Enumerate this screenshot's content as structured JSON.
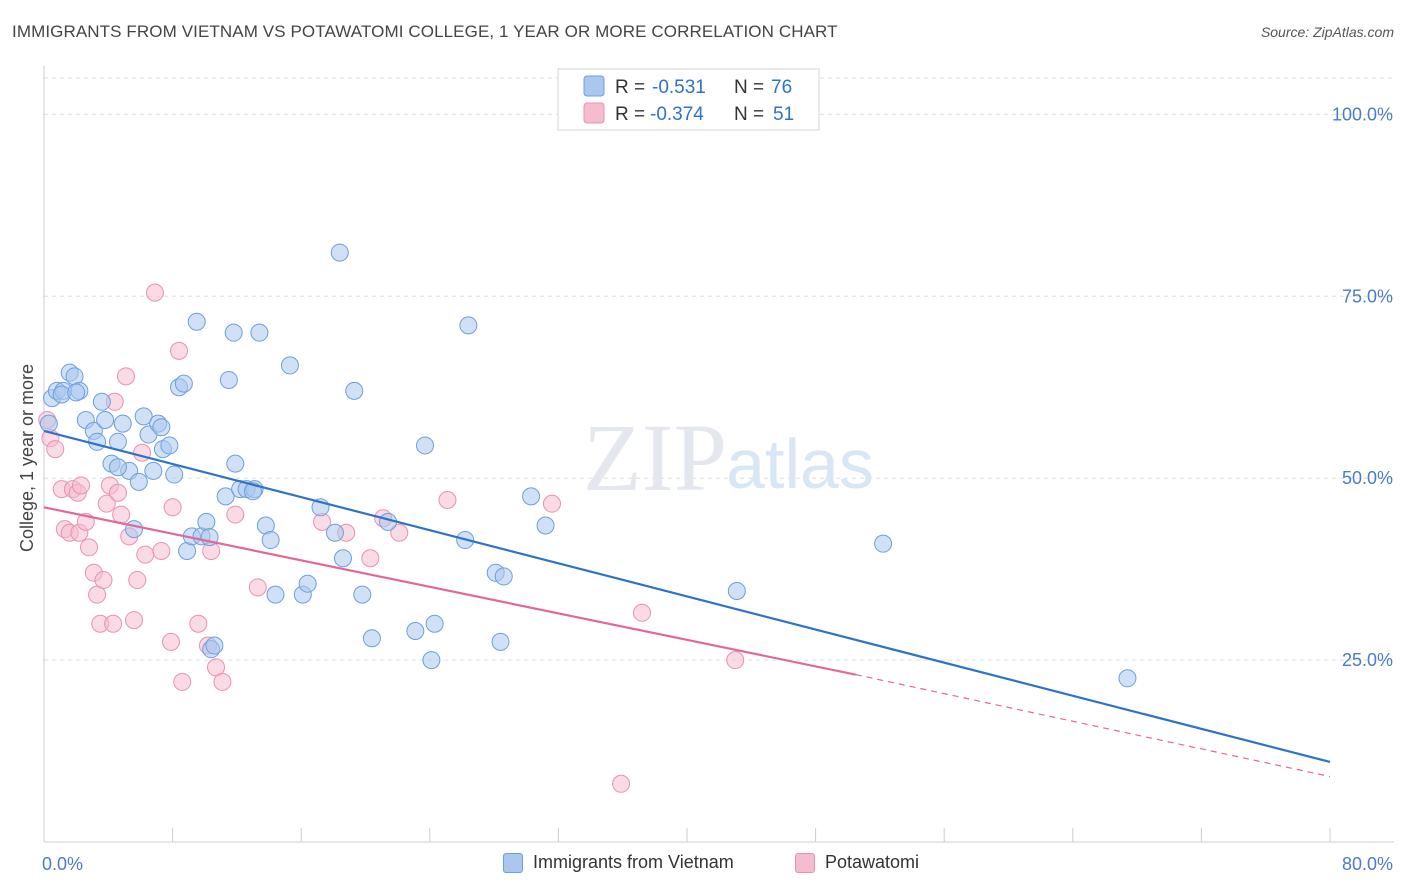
{
  "title": "IMMIGRANTS FROM VIETNAM VS POTAWATOMI COLLEGE, 1 YEAR OR MORE CORRELATION CHART",
  "source": "Source: ZipAtlas.com",
  "watermark": {
    "zip": "ZIP",
    "atlas": "atlas"
  },
  "colors": {
    "blue_fill": "#aac8ee",
    "blue_stroke": "#6d9fdc",
    "blue_line": "#2f72c9",
    "pink_fill": "#f5bcd0",
    "pink_stroke": "#e892b0",
    "pink_line": "#e0699a",
    "tick_label": "#4a7cc9",
    "grid": "#dddddd",
    "axis": "#cccccc"
  },
  "legend_top": [
    {
      "r_label": "R =",
      "r_value": "-0.531",
      "n_label": "N =",
      "n_value": "76"
    },
    {
      "r_label": "R =",
      "r_value": "-0.374",
      "n_label": "N =",
      "n_value": "51"
    }
  ],
  "legend_bottom": [
    {
      "label": "Immigrants from Vietnam"
    },
    {
      "label": "Potawatomi"
    }
  ],
  "chart_data": {
    "type": "scatter",
    "title": "IMMIGRANTS FROM VIETNAM VS POTAWATOMI COLLEGE, 1 YEAR OR MORE CORRELATION CHART",
    "xlabel": "",
    "ylabel": "College, 1 year or more",
    "xlim": [
      0,
      80
    ],
    "ylim": [
      0,
      105
    ],
    "x_tick_labels": [
      "0.0%",
      "80.0%"
    ],
    "y_ticks": [
      25,
      50,
      75,
      100
    ],
    "y_tick_labels": [
      "25.0%",
      "50.0%",
      "75.0%",
      "100.0%"
    ],
    "grid": true,
    "legend_placement": "top-center",
    "series": [
      {
        "name": "Immigrants from Vietnam",
        "color": "#aac8ee",
        "r": -0.531,
        "n": 76,
        "trend": {
          "x": [
            0,
            80
          ],
          "y": [
            56.5,
            11.0
          ]
        },
        "points": [
          [
            0.5,
            61
          ],
          [
            0.8,
            62
          ],
          [
            1.2,
            62
          ],
          [
            1.6,
            64.5
          ],
          [
            1.9,
            64
          ],
          [
            2.2,
            62
          ],
          [
            2.6,
            58
          ],
          [
            3.1,
            56.5
          ],
          [
            3.3,
            55
          ],
          [
            3.6,
            60.5
          ],
          [
            3.8,
            58
          ],
          [
            4.2,
            52
          ],
          [
            4.6,
            55
          ],
          [
            4.9,
            57.5
          ],
          [
            5.3,
            51
          ],
          [
            5.6,
            43
          ],
          [
            5.9,
            49.5
          ],
          [
            6.2,
            58.5
          ],
          [
            6.5,
            56
          ],
          [
            6.8,
            51
          ],
          [
            7.1,
            57.5
          ],
          [
            7.4,
            54
          ],
          [
            7.8,
            54.5
          ],
          [
            8.1,
            50.5
          ],
          [
            8.4,
            62.5
          ],
          [
            8.7,
            63
          ],
          [
            8.9,
            40
          ],
          [
            9.2,
            42
          ],
          [
            9.5,
            71.5
          ],
          [
            9.8,
            42
          ],
          [
            10.1,
            44
          ],
          [
            10.4,
            26.5
          ],
          [
            10.6,
            27
          ],
          [
            11.3,
            47.5
          ],
          [
            11.5,
            63.5
          ],
          [
            11.8,
            70
          ],
          [
            11.9,
            52
          ],
          [
            12.2,
            48.5
          ],
          [
            12.6,
            48.5
          ],
          [
            13.1,
            48.5
          ],
          [
            13.4,
            70
          ],
          [
            13.8,
            43.5
          ],
          [
            14.1,
            41.5
          ],
          [
            14.4,
            34
          ],
          [
            15.3,
            65.5
          ],
          [
            16.1,
            34
          ],
          [
            16.4,
            35.5
          ],
          [
            17.2,
            46
          ],
          [
            18.1,
            42.5
          ],
          [
            18.4,
            81
          ],
          [
            18.6,
            39
          ],
          [
            19.3,
            62
          ],
          [
            19.8,
            34
          ],
          [
            20.4,
            28
          ],
          [
            21.4,
            44
          ],
          [
            23.1,
            29
          ],
          [
            23.7,
            54.5
          ],
          [
            24.1,
            25
          ],
          [
            24.3,
            30
          ],
          [
            26.2,
            41.5
          ],
          [
            26.4,
            71
          ],
          [
            28.1,
            37
          ],
          [
            28.4,
            27.5
          ],
          [
            28.6,
            36.5
          ],
          [
            30.3,
            47.5
          ],
          [
            31.2,
            43.5
          ],
          [
            43.1,
            34.5
          ],
          [
            52.2,
            41
          ],
          [
            67.4,
            22.5
          ],
          [
            0.3,
            57.5
          ],
          [
            1.1,
            61.5
          ],
          [
            2.0,
            61.8
          ],
          [
            4.6,
            51.5
          ],
          [
            7.3,
            57
          ],
          [
            10.3,
            41.9
          ],
          [
            13.0,
            48.2
          ]
        ]
      },
      {
        "name": "Potawatomi",
        "color": "#f5bcd0",
        "r": -0.374,
        "n": 51,
        "trend_solid": {
          "x": [
            0,
            50.5
          ],
          "y": [
            46,
            23.0
          ]
        },
        "trend_dashed": {
          "x": [
            50.5,
            80
          ],
          "y": [
            23.0,
            9.0
          ]
        },
        "points": [
          [
            0.2,
            58
          ],
          [
            0.4,
            55.5
          ],
          [
            0.7,
            54
          ],
          [
            1.1,
            48.5
          ],
          [
            1.3,
            43
          ],
          [
            1.6,
            42.5
          ],
          [
            1.8,
            48.5
          ],
          [
            2.1,
            48
          ],
          [
            2.2,
            42.5
          ],
          [
            2.3,
            49
          ],
          [
            2.6,
            44
          ],
          [
            2.8,
            40.5
          ],
          [
            3.1,
            37
          ],
          [
            3.3,
            34
          ],
          [
            3.5,
            30
          ],
          [
            3.7,
            36
          ],
          [
            3.9,
            46.5
          ],
          [
            4.1,
            49
          ],
          [
            4.3,
            30
          ],
          [
            4.4,
            60.5
          ],
          [
            4.6,
            48
          ],
          [
            4.8,
            45
          ],
          [
            5.1,
            64
          ],
          [
            5.3,
            42
          ],
          [
            5.6,
            30.5
          ],
          [
            5.8,
            36
          ],
          [
            6.1,
            53.5
          ],
          [
            6.3,
            39.5
          ],
          [
            6.9,
            75.5
          ],
          [
            7.3,
            40
          ],
          [
            7.9,
            27.5
          ],
          [
            8.0,
            46
          ],
          [
            8.4,
            67.5
          ],
          [
            8.6,
            22
          ],
          [
            9.6,
            30
          ],
          [
            10.2,
            27
          ],
          [
            10.4,
            40
          ],
          [
            10.7,
            24
          ],
          [
            11.1,
            22
          ],
          [
            11.9,
            45
          ],
          [
            13.3,
            35
          ],
          [
            17.3,
            44
          ],
          [
            18.8,
            42.5
          ],
          [
            20.3,
            39
          ],
          [
            21.1,
            44.5
          ],
          [
            22.1,
            42.5
          ],
          [
            25.1,
            47
          ],
          [
            31.6,
            46.5
          ],
          [
            35.9,
            8
          ],
          [
            37.2,
            31.5
          ],
          [
            43.0,
            25
          ]
        ]
      }
    ]
  }
}
